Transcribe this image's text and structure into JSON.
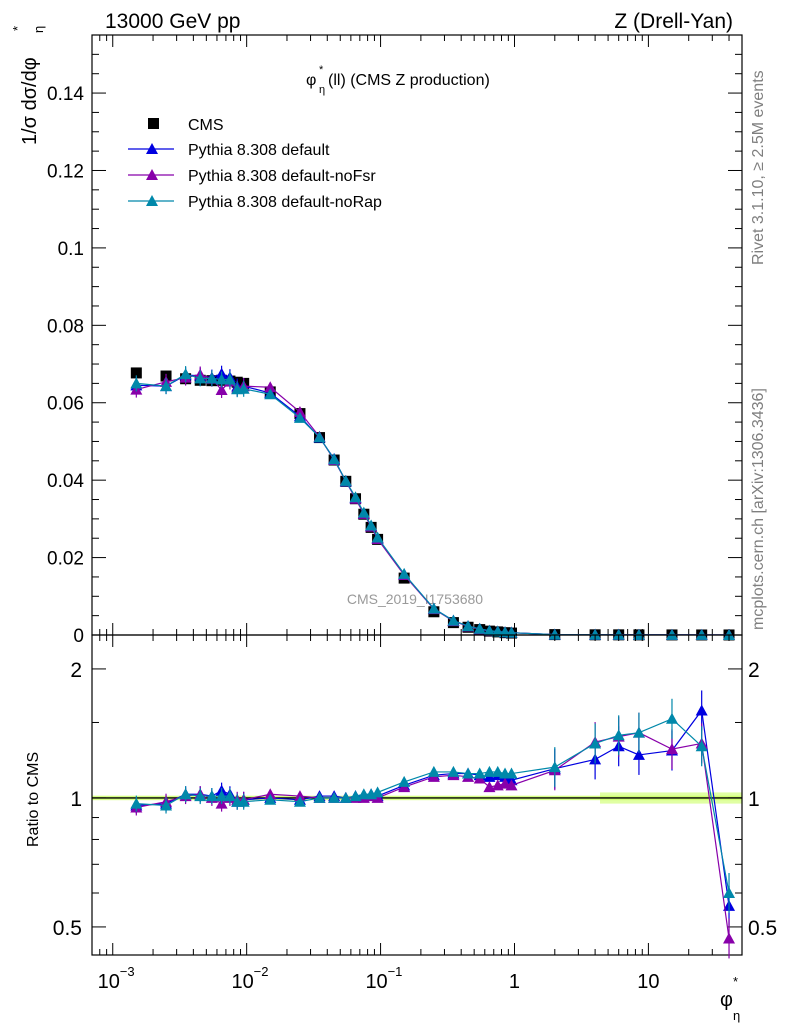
{
  "header": {
    "left": "13000 GeV pp",
    "right": "Z (Drell-Yan)",
    "watermark": "CMS_2019_I1753680",
    "side_rivet": "Rivet 3.1.10, ≥ 2.5M events",
    "side_mcplots": "mcplots.cern.ch [arXiv:1306.3436]"
  },
  "chart_data": [
    {
      "type": "scatter",
      "title": "φ*η(ll) (CMS Z production)",
      "title_parts": {
        "symbol": "φ",
        "sup": "*",
        "sub": "η",
        "rest": "(ll) (CMS Z production)"
      },
      "ylabel": "1/σ dσ/dφ*η",
      "ylabel_parts": {
        "main": "1/σ dσ/dφ",
        "sub": "η",
        "sup": "*"
      },
      "xscale": "log",
      "xlim": [
        0.0007,
        50
      ],
      "ylim": [
        0,
        0.155
      ],
      "yticks": [
        "0",
        "0.02",
        "0.04",
        "0.06",
        "0.08",
        "0.1",
        "0.12",
        "0.14"
      ],
      "legend_position": "top-left",
      "x": [
        0.0015,
        0.0025,
        0.0035,
        0.0045,
        0.0055,
        0.0065,
        0.0075,
        0.0085,
        0.0095,
        0.015,
        0.025,
        0.035,
        0.045,
        0.055,
        0.065,
        0.075,
        0.085,
        0.095,
        0.15,
        0.25,
        0.35,
        0.45,
        0.55,
        0.65,
        0.75,
        0.85,
        0.95,
        2,
        4,
        6,
        8.5,
        15,
        25,
        40
      ],
      "series": [
        {
          "name": "CMS",
          "color": "#000000",
          "marker": "square",
          "values": [
            0.0677,
            0.0669,
            0.0662,
            0.0658,
            0.0657,
            0.0658,
            0.0656,
            0.0653,
            0.065,
            0.0628,
            0.0572,
            0.051,
            0.0452,
            0.0397,
            0.0352,
            0.0312,
            0.0278,
            0.0247,
            0.0147,
            0.006,
            0.0032,
            0.002,
            0.0014,
            0.001,
            0.0008,
            0.0006,
            0.0005,
            0.0001,
            5e-05,
            4e-05,
            3e-05,
            2e-05,
            1e-05,
            1e-05
          ]
        },
        {
          "name": "Pythia 8.308 default",
          "color": "#0000e0",
          "marker": "triangle",
          "values": [
            0.0645,
            0.0643,
            0.0671,
            0.067,
            0.0665,
            0.0675,
            0.0666,
            0.0642,
            0.0643,
            0.0625,
            0.0565,
            0.051,
            0.0455,
            0.0397,
            0.0354,
            0.0314,
            0.0282,
            0.025,
            0.0157,
            0.0068,
            0.0037,
            0.0023,
            0.0016,
            0.0011,
            0.0009,
            0.0007,
            0.0006,
            0.0001,
            6e-05,
            5e-05,
            4e-05,
            3e-05,
            2e-05,
            1e-05
          ]
        },
        {
          "name": "Pythia 8.308 default-noFsr",
          "color": "#8800aa",
          "marker": "triangle",
          "values": [
            0.0634,
            0.0654,
            0.0665,
            0.0673,
            0.0662,
            0.0633,
            0.0655,
            0.0637,
            0.0643,
            0.064,
            0.0576,
            0.0512,
            0.0452,
            0.0398,
            0.0352,
            0.0313,
            0.028,
            0.0248,
            0.0155,
            0.0067,
            0.0036,
            0.0022,
            0.0015,
            0.001,
            0.0009,
            0.0007,
            0.0006,
            0.0001,
            6e-05,
            5e-05,
            4e-05,
            3e-05,
            2e-05,
            1e-05
          ]
        },
        {
          "name": "Pythia 8.308 default-noRap",
          "color": "#0088aa",
          "marker": "triangle",
          "values": [
            0.065,
            0.0643,
            0.0674,
            0.0663,
            0.0663,
            0.066,
            0.066,
            0.0635,
            0.0636,
            0.0622,
            0.0561,
            0.0511,
            0.0454,
            0.0398,
            0.0356,
            0.0316,
            0.0283,
            0.0252,
            0.0158,
            0.0068,
            0.0037,
            0.0023,
            0.0016,
            0.0011,
            0.0009,
            0.0007,
            0.0006,
            0.0001,
            6e-05,
            5e-05,
            4e-05,
            3e-05,
            2e-05,
            1e-05
          ]
        }
      ]
    },
    {
      "type": "scatter",
      "ylabel": "Ratio to CMS",
      "xlabel": "φ*η",
      "xlabel_parts": {
        "symbol": "φ",
        "sup": "*",
        "sub": "η"
      },
      "xscale": "log",
      "yscale": "log",
      "xlim": [
        0.0007,
        50
      ],
      "ylim": [
        0.43,
        2.4
      ],
      "yticks": [
        "0.5",
        "1",
        "2"
      ],
      "xticks": [
        "10",
        "10",
        "10",
        "1",
        "10"
      ],
      "xtick_exponents": [
        "−3",
        "−2",
        "−1",
        "",
        ""
      ],
      "reference_line": 1,
      "reference_band_color": "#ccff66",
      "x": [
        0.0015,
        0.0025,
        0.0035,
        0.0045,
        0.0055,
        0.0065,
        0.0075,
        0.0085,
        0.0095,
        0.015,
        0.025,
        0.035,
        0.045,
        0.055,
        0.065,
        0.075,
        0.085,
        0.095,
        0.15,
        0.25,
        0.35,
        0.45,
        0.55,
        0.65,
        0.75,
        0.85,
        0.95,
        2,
        4,
        6,
        8.5,
        15,
        25,
        40
      ],
      "series": [
        {
          "name": "Pythia 8.308 default",
          "color": "#0000e0",
          "values": [
            0.96,
            0.97,
            1.02,
            1.02,
            1.01,
            1.04,
            1.02,
            0.98,
            0.99,
            1.0,
            0.99,
            1.01,
            1.01,
            1.0,
            1.01,
            1.01,
            1.02,
            1.01,
            1.07,
            1.13,
            1.14,
            1.14,
            1.13,
            1.12,
            1.13,
            1.12,
            1.1,
            1.17,
            1.23,
            1.32,
            1.26,
            1.29,
            1.6,
            0.56
          ]
        },
        {
          "name": "Pythia 8.308 default-noFsr",
          "color": "#8800aa",
          "values": [
            0.95,
            0.98,
            1.01,
            1.02,
            1.0,
            0.97,
            1.0,
            0.99,
            0.99,
            1.02,
            1.01,
            1.0,
            1.0,
            1.0,
            1.0,
            1.0,
            1.01,
            1.0,
            1.06,
            1.12,
            1.13,
            1.12,
            1.11,
            1.06,
            1.07,
            1.08,
            1.07,
            1.16,
            1.35,
            1.39,
            1.42,
            1.3,
            1.34,
            0.47
          ]
        },
        {
          "name": "Pythia 8.308 default-noRap",
          "color": "#0088aa",
          "values": [
            0.97,
            0.96,
            1.02,
            1.01,
            1.01,
            1.01,
            1.01,
            0.98,
            0.98,
            0.99,
            0.98,
            1.0,
            1.0,
            1.0,
            1.01,
            1.02,
            1.02,
            1.03,
            1.09,
            1.15,
            1.15,
            1.14,
            1.14,
            1.15,
            1.15,
            1.14,
            1.14,
            1.18,
            1.34,
            1.4,
            1.42,
            1.53,
            1.32,
            0.6
          ]
        }
      ]
    }
  ]
}
